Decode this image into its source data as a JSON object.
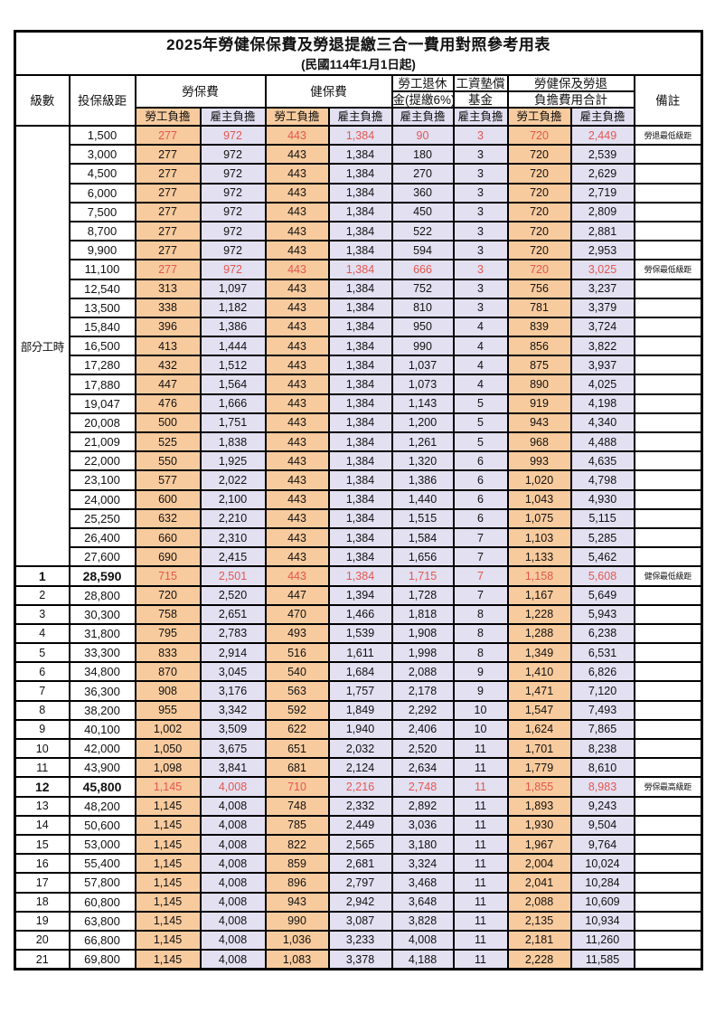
{
  "title": "2025年勞健保保費及勞退提繳三合一費用對照參考用表",
  "subtitle": "(民國114年1月1日起)",
  "colors": {
    "employee_column_bg": "#f8cb9e",
    "employer_column_bg": "#e2e0f1",
    "highlight_text": "#e4564f",
    "remark_text": "#f04b42",
    "grid_border": "#000000"
  },
  "table": {
    "header": {
      "level": "級數",
      "bracket": "投保級距",
      "labor_insurance": "勞保費",
      "health_insurance": "健保費",
      "pension_line1": "勞工退休",
      "pension_line2": "金(提繳6%)",
      "wage_fund_line1": "工資墊償",
      "wage_fund_line2": "基金",
      "total_line1": "勞健保及勞退",
      "total_line2": "負擔費用合計",
      "remark": "備註",
      "employee_share": "勞工負擔",
      "employer_share": "雇主負擔"
    },
    "part_time_label": "部分工時",
    "part_time_rowspan": 23,
    "columns": [
      {
        "key": "level",
        "name": "level-cell",
        "cls": "level"
      },
      {
        "key": "bracket",
        "name": "bracket-cell",
        "cls": "bracket"
      },
      {
        "key": "labor_employee",
        "name": "labor-insurance-employee-cell",
        "cls": "num orange"
      },
      {
        "key": "labor_employer",
        "name": "labor-insurance-employer-cell",
        "cls": "num lavender"
      },
      {
        "key": "health_employee",
        "name": "health-insurance-employee-cell",
        "cls": "num orange"
      },
      {
        "key": "health_employer",
        "name": "health-insurance-employer-cell",
        "cls": "num lavender"
      },
      {
        "key": "pension_employer",
        "name": "pension-employer-cell",
        "cls": "num lavender"
      },
      {
        "key": "wage_fund_employer",
        "name": "wage-fund-employer-cell",
        "cls": "num lavender"
      },
      {
        "key": "total_employee",
        "name": "total-employee-cell",
        "cls": "num orange"
      },
      {
        "key": "total_employer",
        "name": "total-employer-cell",
        "cls": "num lavender"
      },
      {
        "key": "remark",
        "name": "remark-cell",
        "cls": "remark"
      }
    ],
    "rows": [
      [
        "",
        "1,500",
        "277",
        "972",
        "443",
        "1,384",
        "90",
        "3",
        "720",
        "2,449",
        "勞退最低級距",
        "highlight"
      ],
      [
        "",
        "3,000",
        "277",
        "972",
        "443",
        "1,384",
        "180",
        "3",
        "720",
        "2,539",
        "",
        ""
      ],
      [
        "",
        "4,500",
        "277",
        "972",
        "443",
        "1,384",
        "270",
        "3",
        "720",
        "2,629",
        "",
        ""
      ],
      [
        "",
        "6,000",
        "277",
        "972",
        "443",
        "1,384",
        "360",
        "3",
        "720",
        "2,719",
        "",
        ""
      ],
      [
        "",
        "7,500",
        "277",
        "972",
        "443",
        "1,384",
        "450",
        "3",
        "720",
        "2,809",
        "",
        ""
      ],
      [
        "",
        "8,700",
        "277",
        "972",
        "443",
        "1,384",
        "522",
        "3",
        "720",
        "2,881",
        "",
        ""
      ],
      [
        "",
        "9,900",
        "277",
        "972",
        "443",
        "1,384",
        "594",
        "3",
        "720",
        "2,953",
        "",
        ""
      ],
      [
        "",
        "11,100",
        "277",
        "972",
        "443",
        "1,384",
        "666",
        "3",
        "720",
        "3,025",
        "勞保最低級距",
        "highlight"
      ],
      [
        "",
        "12,540",
        "313",
        "1,097",
        "443",
        "1,384",
        "752",
        "3",
        "756",
        "3,237",
        "",
        ""
      ],
      [
        "",
        "13,500",
        "338",
        "1,182",
        "443",
        "1,384",
        "810",
        "3",
        "781",
        "3,379",
        "",
        ""
      ],
      [
        "",
        "15,840",
        "396",
        "1,386",
        "443",
        "1,384",
        "950",
        "4",
        "839",
        "3,724",
        "",
        ""
      ],
      [
        "",
        "16,500",
        "413",
        "1,444",
        "443",
        "1,384",
        "990",
        "4",
        "856",
        "3,822",
        "",
        ""
      ],
      [
        "",
        "17,280",
        "432",
        "1,512",
        "443",
        "1,384",
        "1,037",
        "4",
        "875",
        "3,937",
        "",
        ""
      ],
      [
        "",
        "17,880",
        "447",
        "1,564",
        "443",
        "1,384",
        "1,073",
        "4",
        "890",
        "4,025",
        "",
        ""
      ],
      [
        "",
        "19,047",
        "476",
        "1,666",
        "443",
        "1,384",
        "1,143",
        "5",
        "919",
        "4,198",
        "",
        ""
      ],
      [
        "",
        "20,008",
        "500",
        "1,751",
        "443",
        "1,384",
        "1,200",
        "5",
        "943",
        "4,340",
        "",
        ""
      ],
      [
        "",
        "21,009",
        "525",
        "1,838",
        "443",
        "1,384",
        "1,261",
        "5",
        "968",
        "4,488",
        "",
        ""
      ],
      [
        "",
        "22,000",
        "550",
        "1,925",
        "443",
        "1,384",
        "1,320",
        "6",
        "993",
        "4,635",
        "",
        ""
      ],
      [
        "",
        "23,100",
        "577",
        "2,022",
        "443",
        "1,384",
        "1,386",
        "6",
        "1,020",
        "4,798",
        "",
        ""
      ],
      [
        "",
        "24,000",
        "600",
        "2,100",
        "443",
        "1,384",
        "1,440",
        "6",
        "1,043",
        "4,930",
        "",
        ""
      ],
      [
        "",
        "25,250",
        "632",
        "2,210",
        "443",
        "1,384",
        "1,515",
        "6",
        "1,075",
        "5,115",
        "",
        ""
      ],
      [
        "",
        "26,400",
        "660",
        "2,310",
        "443",
        "1,384",
        "1,584",
        "7",
        "1,103",
        "5,285",
        "",
        ""
      ],
      [
        "",
        "27,600",
        "690",
        "2,415",
        "443",
        "1,384",
        "1,656",
        "7",
        "1,133",
        "5,462",
        "",
        ""
      ],
      [
        "1",
        "28,590",
        "715",
        "2,501",
        "443",
        "1,384",
        "1,715",
        "7",
        "1,158",
        "5,608",
        "健保最低級距",
        "highlight emph"
      ],
      [
        "2",
        "28,800",
        "720",
        "2,520",
        "447",
        "1,394",
        "1,728",
        "7",
        "1,167",
        "5,649",
        "",
        ""
      ],
      [
        "3",
        "30,300",
        "758",
        "2,651",
        "470",
        "1,466",
        "1,818",
        "8",
        "1,228",
        "5,943",
        "",
        ""
      ],
      [
        "4",
        "31,800",
        "795",
        "2,783",
        "493",
        "1,539",
        "1,908",
        "8",
        "1,288",
        "6,238",
        "",
        ""
      ],
      [
        "5",
        "33,300",
        "833",
        "2,914",
        "516",
        "1,611",
        "1,998",
        "8",
        "1,349",
        "6,531",
        "",
        ""
      ],
      [
        "6",
        "34,800",
        "870",
        "3,045",
        "540",
        "1,684",
        "2,088",
        "9",
        "1,410",
        "6,826",
        "",
        ""
      ],
      [
        "7",
        "36,300",
        "908",
        "3,176",
        "563",
        "1,757",
        "2,178",
        "9",
        "1,471",
        "7,120",
        "",
        ""
      ],
      [
        "8",
        "38,200",
        "955",
        "3,342",
        "592",
        "1,849",
        "2,292",
        "10",
        "1,547",
        "7,493",
        "",
        ""
      ],
      [
        "9",
        "40,100",
        "1,002",
        "3,509",
        "622",
        "1,940",
        "2,406",
        "10",
        "1,624",
        "7,865",
        "",
        ""
      ],
      [
        "10",
        "42,000",
        "1,050",
        "3,675",
        "651",
        "2,032",
        "2,520",
        "11",
        "1,701",
        "8,238",
        "",
        ""
      ],
      [
        "11",
        "43,900",
        "1,098",
        "3,841",
        "681",
        "2,124",
        "2,634",
        "11",
        "1,779",
        "8,610",
        "",
        ""
      ],
      [
        "12",
        "45,800",
        "1,145",
        "4,008",
        "710",
        "2,216",
        "2,748",
        "11",
        "1,855",
        "8,983",
        "勞保最高級距",
        "highlight emph"
      ],
      [
        "13",
        "48,200",
        "1,145",
        "4,008",
        "748",
        "2,332",
        "2,892",
        "11",
        "1,893",
        "9,243",
        "",
        ""
      ],
      [
        "14",
        "50,600",
        "1,145",
        "4,008",
        "785",
        "2,449",
        "3,036",
        "11",
        "1,930",
        "9,504",
        "",
        ""
      ],
      [
        "15",
        "53,000",
        "1,145",
        "4,008",
        "822",
        "2,565",
        "3,180",
        "11",
        "1,967",
        "9,764",
        "",
        ""
      ],
      [
        "16",
        "55,400",
        "1,145",
        "4,008",
        "859",
        "2,681",
        "3,324",
        "11",
        "2,004",
        "10,024",
        "",
        ""
      ],
      [
        "17",
        "57,800",
        "1,145",
        "4,008",
        "896",
        "2,797",
        "3,468",
        "11",
        "2,041",
        "10,284",
        "",
        ""
      ],
      [
        "18",
        "60,800",
        "1,145",
        "4,008",
        "943",
        "2,942",
        "3,648",
        "11",
        "2,088",
        "10,609",
        "",
        ""
      ],
      [
        "19",
        "63,800",
        "1,145",
        "4,008",
        "990",
        "3,087",
        "3,828",
        "11",
        "2,135",
        "10,934",
        "",
        ""
      ],
      [
        "20",
        "66,800",
        "1,145",
        "4,008",
        "1,036",
        "3,233",
        "4,008",
        "11",
        "2,181",
        "11,260",
        "",
        ""
      ],
      [
        "21",
        "69,800",
        "1,145",
        "4,008",
        "1,083",
        "3,378",
        "4,188",
        "11",
        "2,228",
        "11,585",
        "",
        ""
      ]
    ]
  }
}
